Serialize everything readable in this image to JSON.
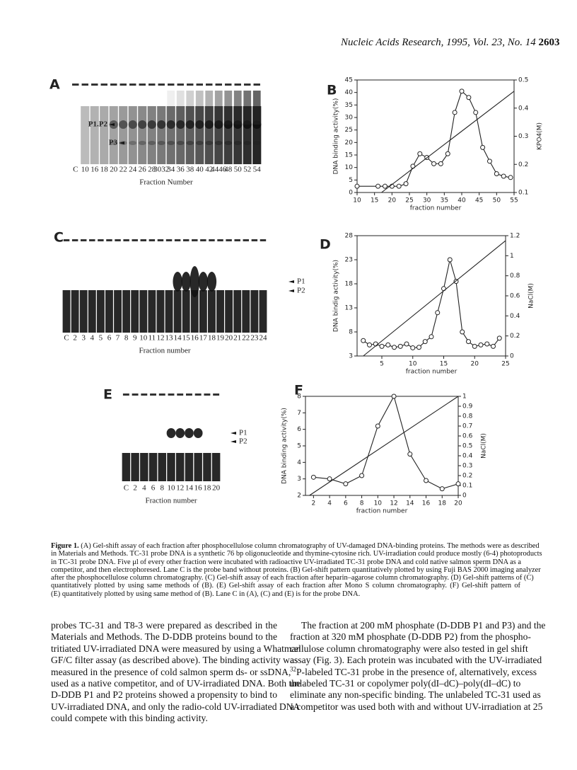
{
  "header": {
    "journal": "Nucleic Acids Research, 1995, Vol. 23, No. 14",
    "page": "2603"
  },
  "gels": [
    {
      "label": "A",
      "bands": [
        "P1.P2",
        "P3"
      ],
      "lanes": [
        "C",
        "10",
        "16",
        "18",
        "20",
        "22",
        "24",
        "26",
        "28",
        "3032",
        "34",
        "36",
        "38",
        "40",
        "42",
        "4446",
        "48",
        "50",
        "52",
        "54"
      ],
      "xlabel": "Fraction Number"
    },
    {
      "label": "C",
      "bands": [
        "P1",
        "P2"
      ],
      "lanes": [
        "C",
        "2",
        "3",
        "4",
        "5",
        "6",
        "7",
        "8",
        "9",
        "10",
        "11",
        "12",
        "13",
        "14",
        "15",
        "16",
        "17",
        "18",
        "19",
        "20",
        "21",
        "22",
        "23",
        "24"
      ],
      "xlabel": "Fraction number"
    },
    {
      "label": "E",
      "bands": [
        "P1",
        "P2"
      ],
      "lanes": [
        "C",
        "2",
        "4",
        "6",
        "8",
        "10",
        "12",
        "14",
        "16",
        "18",
        "20"
      ],
      "xlabel": "Fraction number"
    }
  ],
  "chart_data": [
    {
      "type": "line",
      "title": "B",
      "xlabel": "fraction number",
      "ylabel": "DNA binding activity(%)",
      "y2label": "KPO4(M)",
      "xlim": [
        10,
        55
      ],
      "xticks": [
        10,
        15,
        20,
        25,
        30,
        35,
        40,
        45,
        50,
        55
      ],
      "ylim": [
        0,
        45
      ],
      "yticks": [
        0,
        5,
        10,
        15,
        20,
        25,
        30,
        35,
        40,
        45
      ],
      "y2lim": [
        0.1,
        0.5
      ],
      "y2ticks": [
        0.1,
        0.2,
        0.3,
        0.4,
        0.5
      ],
      "series": [
        {
          "color": "#222222",
          "marker": "circle",
          "x": [
            10,
            16,
            18,
            20,
            22,
            24,
            26,
            28,
            30,
            32,
            34,
            36,
            38,
            40,
            42,
            44,
            46,
            48,
            50,
            52,
            54
          ],
          "values": [
            2.5,
            2.5,
            2.5,
            2.5,
            2.5,
            3.5,
            10.5,
            15.5,
            14,
            11.5,
            11.5,
            15.5,
            32,
            40.5,
            38,
            32,
            18,
            12.5,
            7.5,
            6.5,
            6
          ]
        },
        {
          "color": "#222222",
          "axis": "y2",
          "x": [
            17,
            55
          ],
          "values": [
            0.1,
            0.46
          ]
        }
      ]
    },
    {
      "type": "line",
      "title": "D",
      "xlabel": "fraction number",
      "ylabel": "DNA bindig activity(%)",
      "y2label": "NaCl(M)",
      "xlim": [
        1,
        25
      ],
      "xticks": [
        5,
        10,
        15,
        20,
        25
      ],
      "ylim": [
        3,
        28
      ],
      "yticks": [
        3,
        8,
        13,
        18,
        23,
        28
      ],
      "y2lim": [
        0,
        1.2
      ],
      "y2ticks": [
        0,
        0.2,
        0.4,
        0.6,
        0.8,
        1,
        1.2
      ],
      "series": [
        {
          "color": "#222222",
          "marker": "circle",
          "x": [
            2,
            3,
            4,
            5,
            6,
            7,
            8,
            9,
            10,
            11,
            12,
            13,
            14,
            15,
            16,
            17,
            18,
            19,
            20,
            21,
            22,
            23,
            24
          ],
          "values": [
            6.2,
            5.3,
            5.5,
            5,
            5.3,
            4.8,
            5,
            5.5,
            4.7,
            4.8,
            6,
            7,
            12,
            17,
            23,
            18.5,
            8,
            6,
            5,
            5.3,
            5.5,
            5,
            6.7
          ]
        },
        {
          "color": "#222222",
          "axis": "y2",
          "x": [
            2,
            25
          ],
          "values": [
            0,
            1.15
          ]
        }
      ]
    },
    {
      "type": "line",
      "title": "F",
      "xlabel": "fraction number",
      "ylabel": "DNA binding activity(%)",
      "y2label": "NaCl(M)",
      "xlim": [
        1,
        20
      ],
      "xticks": [
        2,
        4,
        6,
        8,
        10,
        12,
        14,
        16,
        18,
        20
      ],
      "ylim": [
        2,
        8
      ],
      "yticks": [
        2,
        3,
        4,
        5,
        6,
        7,
        8
      ],
      "y2lim": [
        0,
        1
      ],
      "y2ticks": [
        0,
        0.1,
        0.2,
        0.3,
        0.4,
        0.5,
        0.6,
        0.7,
        0.8,
        0.9,
        1
      ],
      "series": [
        {
          "color": "#222222",
          "marker": "circle",
          "x": [
            2,
            4,
            6,
            8,
            10,
            12,
            14,
            16,
            18,
            20
          ],
          "values": [
            3.1,
            3,
            2.7,
            3.2,
            6.2,
            8,
            4.5,
            2.9,
            2.4,
            2.7
          ]
        },
        {
          "color": "#222222",
          "axis": "y2",
          "x": [
            1.5,
            20
          ],
          "values": [
            0,
            1
          ]
        }
      ]
    }
  ],
  "caption": {
    "label": "Figure 1.",
    "lines": [
      " (A) Gel-shift assay of each fraction after phosphocellulose column chromatography of UV-damaged DNA-binding proteins. The methods were as described",
      "in Materials and Methods. TC-31 probe DNA is a synthetic 76 bp oligonucleotide and thymine-cytosine rich. UV-irradiation could produce mostly (6-4) photoproducts",
      "in TC-31 probe DNA. Five μl of every other fraction were incubated with radioactive UV-irradiated TC-31 probe DNA and cold native salmon sperm DNA as a",
      "competitor, and then electrophoresed. Lane C is the probe band without proteins. (B) Gel-shift pattern quantitatively plotted by using Fuji BAS 2000 imaging analyzer",
      "after the phosphocellulose column chromatography. (C) Gel-shift assay of each fraction after heparin–agarose column chromatography. (D) Gel-shift patterns of (C)",
      "quantitatively plotted by using same methods of (B). (E) Gel-shift assay of each fraction after Mono S column chromatography. (F) Gel-shift pattern of",
      "(E) quantitatively plotted by using same method of (B). Lane C in (A), (C) and (E) is for the probe DNA."
    ]
  },
  "body": {
    "left": [
      "probes TC-31 and T8-3 were prepared as described in the",
      "Materials and Methods. The D-DDB proteins bound to the",
      "tritiated UV-irradiated DNA were measured by using a Whatman",
      "GF/C filter assay (as described above). The binding activity was",
      "measured in the presence of cold salmon sperm ds- or ssDNA,",
      "used as a native competitor, and of UV-irradiated DNA. Both the",
      "D-DDB P1 and P2 proteins showed a propensity to bind to",
      "UV-irradiated DNA, and only the radio-cold UV-irradiated DNA",
      "could compete with this binding activity."
    ],
    "right": [
      "The fraction at 200 mM phosphate (D-DDB P1 and P3) and the",
      "fraction at 320 mM phosphate (D-DDB P2) from the phospho-",
      "cellulose column chromatography were also tested in gel shift",
      "assay (Fig. 3). Each protein was incubated with the UV-irradiated",
      {
        "sup": "32",
        "text": "P-labeled TC-31 probe in the presence of, alternatively, excess"
      },
      "unlabeled TC-31 or copolymer poly(dI–dC)–poly(dI–dC) to",
      "eliminate any non-specific binding. The unlabeled TC-31 used as",
      "a competitor was used both with and without UV-irradiation at 25"
    ]
  }
}
